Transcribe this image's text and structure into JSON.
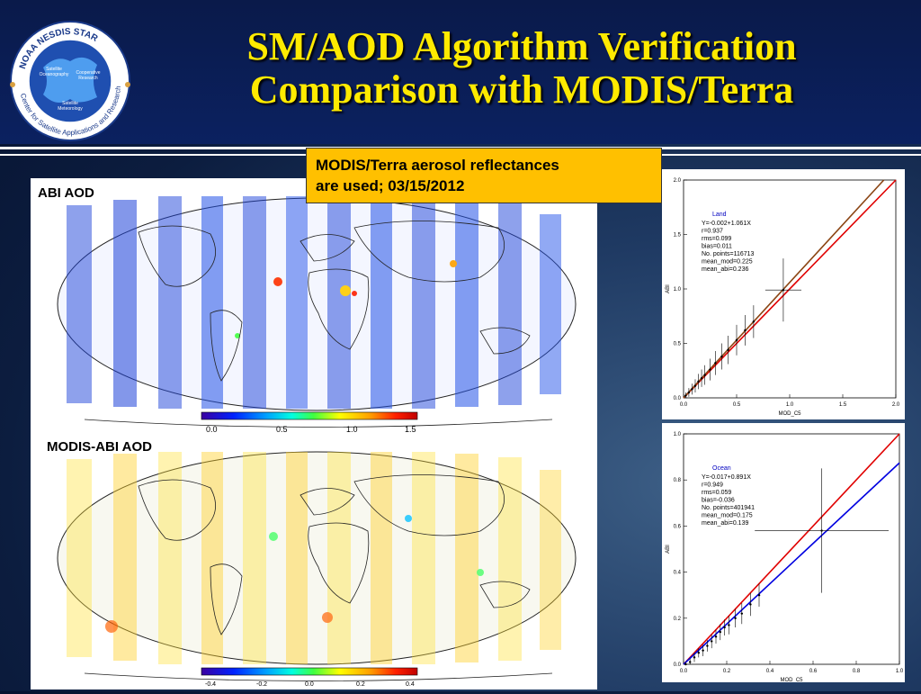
{
  "title": {
    "line1": "SM/AOD Algorithm Verification",
    "line2": "Comparison with MODIS/Terra"
  },
  "logo": {
    "ring_text": "NOAA NESDIS STAR Center for Satellite Applications and Research",
    "inner_labels": [
      "Satellite Oceanography Division",
      "Cooperative Research Program",
      "Satellite Meteorology and Climate Division"
    ]
  },
  "callout": {
    "line1": "MODIS/Terra aerosol reflectances",
    "line2": "are used; 03/15/2012"
  },
  "map_top": {
    "label": "ABI AOD",
    "colorbar_ticks": [
      "0.0",
      "0.5",
      "1.0",
      "1.5"
    ],
    "colorbar_colors": [
      "#3b00a0",
      "#0022ff",
      "#00a0ff",
      "#00ffe0",
      "#40ff40",
      "#ffff00",
      "#ffa000",
      "#ff2000",
      "#c00000"
    ]
  },
  "map_bottom": {
    "label": "MODIS-ABI AOD",
    "colorbar_ticks": [
      "-0.4",
      "-0.2",
      "0.0",
      "0.2",
      "0.4"
    ],
    "colorbar_colors": [
      "#3b00a0",
      "#0022ff",
      "#00a0ff",
      "#00ffe0",
      "#40ff40",
      "#ffff00",
      "#ffa000",
      "#ff2000",
      "#c00000"
    ]
  },
  "colors": {
    "one_to_one": "#e00000",
    "land_fit": "#8b4513",
    "ocean_fit": "#0000e0",
    "title": "#ffea00",
    "callout": "#ffc000"
  },
  "chart_data": [
    {
      "type": "scatter",
      "panel": "Land",
      "xlabel": "MOD_C5",
      "ylabel": "ABI",
      "xlim": [
        0,
        2.0
      ],
      "ylim": [
        0,
        2.0
      ],
      "xticks": [
        "0.0",
        "0.5",
        "1.0",
        "1.5",
        "2.0"
      ],
      "yticks": [
        "0.0",
        "0.5",
        "1.0",
        "1.5",
        "2.0"
      ],
      "stats": {
        "name": "Land",
        "fit": "Y=-0.002+1.061X",
        "r": "r=0.937",
        "rms": "rms=0.099",
        "bias": "bias=0.011",
        "npts": "No. points=116713",
        "mean_mod": "mean_mod=0.225",
        "mean_abi": "mean_abi=0.236"
      },
      "fit_line": {
        "intercept": -0.002,
        "slope": 1.061
      },
      "points": [
        {
          "x": 0.02,
          "y": 0.02,
          "ex": 0.01,
          "ey": 0.03
        },
        {
          "x": 0.05,
          "y": 0.05,
          "ex": 0.01,
          "ey": 0.04
        },
        {
          "x": 0.08,
          "y": 0.08,
          "ex": 0.01,
          "ey": 0.05
        },
        {
          "x": 0.11,
          "y": 0.11,
          "ex": 0.01,
          "ey": 0.06
        },
        {
          "x": 0.14,
          "y": 0.15,
          "ex": 0.01,
          "ey": 0.07
        },
        {
          "x": 0.17,
          "y": 0.18,
          "ex": 0.01,
          "ey": 0.08
        },
        {
          "x": 0.2,
          "y": 0.21,
          "ex": 0.01,
          "ey": 0.09
        },
        {
          "x": 0.25,
          "y": 0.26,
          "ex": 0.01,
          "ey": 0.1
        },
        {
          "x": 0.3,
          "y": 0.32,
          "ex": 0.01,
          "ey": 0.11
        },
        {
          "x": 0.36,
          "y": 0.38,
          "ex": 0.01,
          "ey": 0.12
        },
        {
          "x": 0.42,
          "y": 0.44,
          "ex": 0.01,
          "ey": 0.13
        },
        {
          "x": 0.5,
          "y": 0.53,
          "ex": 0.01,
          "ey": 0.14
        },
        {
          "x": 0.58,
          "y": 0.62,
          "ex": 0.01,
          "ey": 0.14
        },
        {
          "x": 0.66,
          "y": 0.7,
          "ex": 0.01,
          "ey": 0.15
        },
        {
          "x": 0.94,
          "y": 0.99,
          "ex": 0.17,
          "ey": 0.29
        }
      ]
    },
    {
      "type": "scatter",
      "panel": "Ocean",
      "xlabel": "MOD_C5",
      "ylabel": "ABI",
      "xlim": [
        0,
        1.0
      ],
      "ylim": [
        0,
        1.0
      ],
      "xticks": [
        "0.0",
        "0.2",
        "0.4",
        "0.6",
        "0.8",
        "1.0"
      ],
      "yticks": [
        "0.0",
        "0.2",
        "0.4",
        "0.6",
        "0.8",
        "1.0"
      ],
      "stats": {
        "name": "Ocean",
        "fit": "Y=-0.017+0.891X",
        "r": "r=0.949",
        "rms": "rms=0.059",
        "bias": "bias=-0.036",
        "npts": "No. points=401941",
        "mean_mod": "mean_mod=0.175",
        "mean_abi": "mean_abi=0.139"
      },
      "fit_line": {
        "intercept": -0.017,
        "slope": 0.891
      },
      "points": [
        {
          "x": 0.01,
          "y": 0.0,
          "ex": 0.005,
          "ey": 0.01
        },
        {
          "x": 0.03,
          "y": 0.01,
          "ex": 0.005,
          "ey": 0.015
        },
        {
          "x": 0.05,
          "y": 0.03,
          "ex": 0.005,
          "ey": 0.02
        },
        {
          "x": 0.07,
          "y": 0.05,
          "ex": 0.005,
          "ey": 0.02
        },
        {
          "x": 0.09,
          "y": 0.06,
          "ex": 0.005,
          "ey": 0.025
        },
        {
          "x": 0.11,
          "y": 0.08,
          "ex": 0.005,
          "ey": 0.025
        },
        {
          "x": 0.13,
          "y": 0.1,
          "ex": 0.005,
          "ey": 0.03
        },
        {
          "x": 0.15,
          "y": 0.12,
          "ex": 0.005,
          "ey": 0.03
        },
        {
          "x": 0.17,
          "y": 0.14,
          "ex": 0.005,
          "ey": 0.035
        },
        {
          "x": 0.19,
          "y": 0.16,
          "ex": 0.005,
          "ey": 0.035
        },
        {
          "x": 0.21,
          "y": 0.17,
          "ex": 0.005,
          "ey": 0.04
        },
        {
          "x": 0.24,
          "y": 0.2,
          "ex": 0.005,
          "ey": 0.04
        },
        {
          "x": 0.27,
          "y": 0.22,
          "ex": 0.005,
          "ey": 0.045
        },
        {
          "x": 0.31,
          "y": 0.26,
          "ex": 0.005,
          "ey": 0.05
        },
        {
          "x": 0.35,
          "y": 0.3,
          "ex": 0.005,
          "ey": 0.05
        },
        {
          "x": 0.64,
          "y": 0.58,
          "ex": 0.31,
          "ey": 0.27
        }
      ]
    }
  ]
}
